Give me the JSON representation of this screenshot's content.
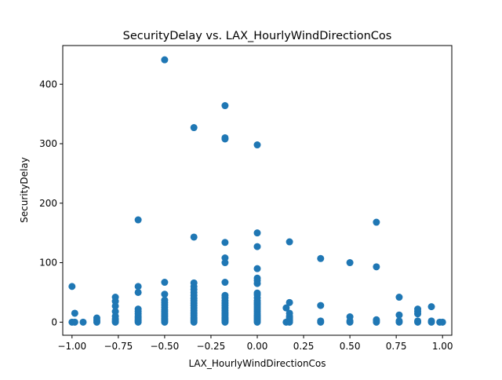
{
  "chart_data": {
    "type": "scatter",
    "title": "SecurityDelay vs. LAX_HourlyWindDirectionCos",
    "xlabel": "LAX_HourlyWindDirectionCos",
    "ylabel": "SecurityDelay",
    "xlim": [
      -1.05,
      1.05
    ],
    "ylim": [
      -22,
      465
    ],
    "xticks": [
      -1.0,
      -0.75,
      -0.5,
      -0.25,
      0.0,
      0.25,
      0.5,
      0.75,
      1.0
    ],
    "xtick_labels": [
      "−1.00",
      "−0.75",
      "−0.50",
      "−0.25",
      "0.00",
      "0.25",
      "0.50",
      "0.75",
      "1.00"
    ],
    "yticks": [
      0,
      100,
      200,
      300,
      400
    ],
    "ytick_labels": [
      "0",
      "100",
      "200",
      "300",
      "400"
    ],
    "grid": false,
    "legend": false,
    "marker_color": "#1f77b4",
    "series": [
      {
        "points": [
          [
            -1.0,
            0
          ],
          [
            -1.0,
            60
          ],
          [
            -0.985,
            0
          ],
          [
            -0.985,
            15
          ],
          [
            -0.94,
            0
          ],
          [
            -0.866,
            0
          ],
          [
            -0.866,
            3
          ],
          [
            -0.866,
            7
          ],
          [
            -0.766,
            0
          ],
          [
            -0.766,
            2
          ],
          [
            -0.766,
            5
          ],
          [
            -0.766,
            10
          ],
          [
            -0.766,
            18
          ],
          [
            -0.766,
            27
          ],
          [
            -0.766,
            35
          ],
          [
            -0.766,
            42
          ],
          [
            -0.643,
            0
          ],
          [
            -0.643,
            2
          ],
          [
            -0.643,
            4
          ],
          [
            -0.643,
            7
          ],
          [
            -0.643,
            10
          ],
          [
            -0.643,
            14
          ],
          [
            -0.643,
            18
          ],
          [
            -0.643,
            22
          ],
          [
            -0.643,
            50
          ],
          [
            -0.643,
            60
          ],
          [
            -0.643,
            172
          ],
          [
            -0.5,
            0
          ],
          [
            -0.5,
            2
          ],
          [
            -0.5,
            4
          ],
          [
            -0.5,
            6
          ],
          [
            -0.5,
            9
          ],
          [
            -0.5,
            12
          ],
          [
            -0.5,
            15
          ],
          [
            -0.5,
            18
          ],
          [
            -0.5,
            21
          ],
          [
            -0.5,
            25
          ],
          [
            -0.5,
            29
          ],
          [
            -0.5,
            33
          ],
          [
            -0.5,
            37
          ],
          [
            -0.5,
            47
          ],
          [
            -0.5,
            67
          ],
          [
            -0.5,
            441
          ],
          [
            -0.342,
            0
          ],
          [
            -0.342,
            2
          ],
          [
            -0.342,
            4
          ],
          [
            -0.342,
            6
          ],
          [
            -0.342,
            8
          ],
          [
            -0.342,
            11
          ],
          [
            -0.342,
            14
          ],
          [
            -0.342,
            17
          ],
          [
            -0.342,
            20
          ],
          [
            -0.342,
            24
          ],
          [
            -0.342,
            28
          ],
          [
            -0.342,
            32
          ],
          [
            -0.342,
            36
          ],
          [
            -0.342,
            40
          ],
          [
            -0.342,
            45
          ],
          [
            -0.342,
            50
          ],
          [
            -0.342,
            55
          ],
          [
            -0.342,
            60
          ],
          [
            -0.342,
            66
          ],
          [
            -0.342,
            143
          ],
          [
            -0.342,
            327
          ],
          [
            -0.174,
            0
          ],
          [
            -0.174,
            2
          ],
          [
            -0.174,
            4
          ],
          [
            -0.174,
            6
          ],
          [
            -0.174,
            8
          ],
          [
            -0.174,
            11
          ],
          [
            -0.174,
            14
          ],
          [
            -0.174,
            17
          ],
          [
            -0.174,
            20
          ],
          [
            -0.174,
            24
          ],
          [
            -0.174,
            28
          ],
          [
            -0.174,
            32
          ],
          [
            -0.174,
            36
          ],
          [
            -0.174,
            41
          ],
          [
            -0.174,
            45
          ],
          [
            -0.174,
            67
          ],
          [
            -0.174,
            100
          ],
          [
            -0.174,
            108
          ],
          [
            -0.174,
            134
          ],
          [
            -0.174,
            308
          ],
          [
            -0.174,
            310
          ],
          [
            -0.174,
            364
          ],
          [
            0.0,
            0
          ],
          [
            0.0,
            2
          ],
          [
            0.0,
            4
          ],
          [
            0.0,
            6
          ],
          [
            0.0,
            8
          ],
          [
            0.0,
            10
          ],
          [
            0.0,
            12
          ],
          [
            0.0,
            15
          ],
          [
            0.0,
            18
          ],
          [
            0.0,
            21
          ],
          [
            0.0,
            24
          ],
          [
            0.0,
            27
          ],
          [
            0.0,
            30
          ],
          [
            0.0,
            33
          ],
          [
            0.0,
            36
          ],
          [
            0.0,
            41
          ],
          [
            0.0,
            46
          ],
          [
            0.0,
            49
          ],
          [
            0.0,
            65
          ],
          [
            0.0,
            70
          ],
          [
            0.0,
            74
          ],
          [
            0.0,
            90
          ],
          [
            0.0,
            127
          ],
          [
            0.0,
            150
          ],
          [
            0.0,
            298
          ],
          [
            0.156,
            0
          ],
          [
            0.156,
            24
          ],
          [
            0.174,
            0
          ],
          [
            0.174,
            2
          ],
          [
            0.174,
            4
          ],
          [
            0.174,
            7
          ],
          [
            0.174,
            10
          ],
          [
            0.174,
            15
          ],
          [
            0.174,
            33
          ],
          [
            0.174,
            135
          ],
          [
            0.342,
            0
          ],
          [
            0.342,
            2
          ],
          [
            0.342,
            28
          ],
          [
            0.342,
            107
          ],
          [
            0.5,
            0
          ],
          [
            0.5,
            2
          ],
          [
            0.5,
            9
          ],
          [
            0.5,
            100
          ],
          [
            0.643,
            0
          ],
          [
            0.643,
            2
          ],
          [
            0.643,
            4
          ],
          [
            0.643,
            93
          ],
          [
            0.643,
            168
          ],
          [
            0.766,
            0
          ],
          [
            0.766,
            2
          ],
          [
            0.766,
            12
          ],
          [
            0.766,
            42
          ],
          [
            0.866,
            0
          ],
          [
            0.866,
            2
          ],
          [
            0.866,
            14
          ],
          [
            0.866,
            18
          ],
          [
            0.866,
            22
          ],
          [
            0.94,
            0
          ],
          [
            0.94,
            2
          ],
          [
            0.94,
            26
          ],
          [
            0.985,
            0
          ],
          [
            1.0,
            0
          ]
        ]
      }
    ]
  }
}
